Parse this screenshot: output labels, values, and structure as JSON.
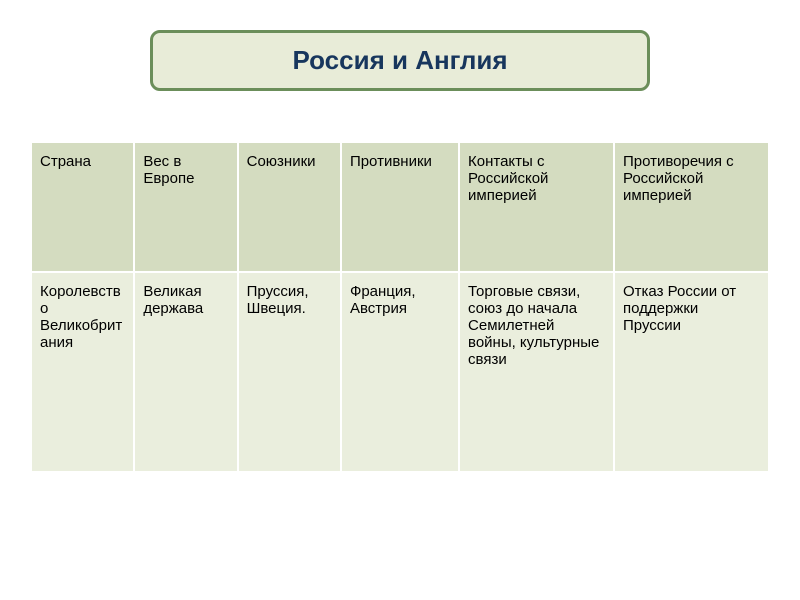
{
  "title": "Россия и Англия",
  "table": {
    "columns": [
      "Страна",
      "Вес в Европе",
      "Союзники",
      "Противники",
      "Контакты с Российской империей",
      "Противоречия с Российской империей"
    ],
    "rows": [
      [
        "Королевство Великобритания",
        "Великая держава",
        "Пруссия, Швеция.",
        "Франция, Австрия",
        "Торговые связи, союз до начала Семилетней войны, культурные связи",
        "Отказ России от поддержки Пруссии"
      ]
    ],
    "column_widths": [
      "14%",
      "14%",
      "14%",
      "16%",
      "21%",
      "21%"
    ],
    "colors": {
      "title_bg": "#e8ecd8",
      "title_border": "#6b8e5a",
      "title_text": "#17365d",
      "header_bg": "#d4dcc0",
      "row_bg": "#eaeedd",
      "cell_border": "#ffffff",
      "text": "#000000"
    },
    "fonts": {
      "title_size": 26,
      "cell_size": 15
    }
  }
}
